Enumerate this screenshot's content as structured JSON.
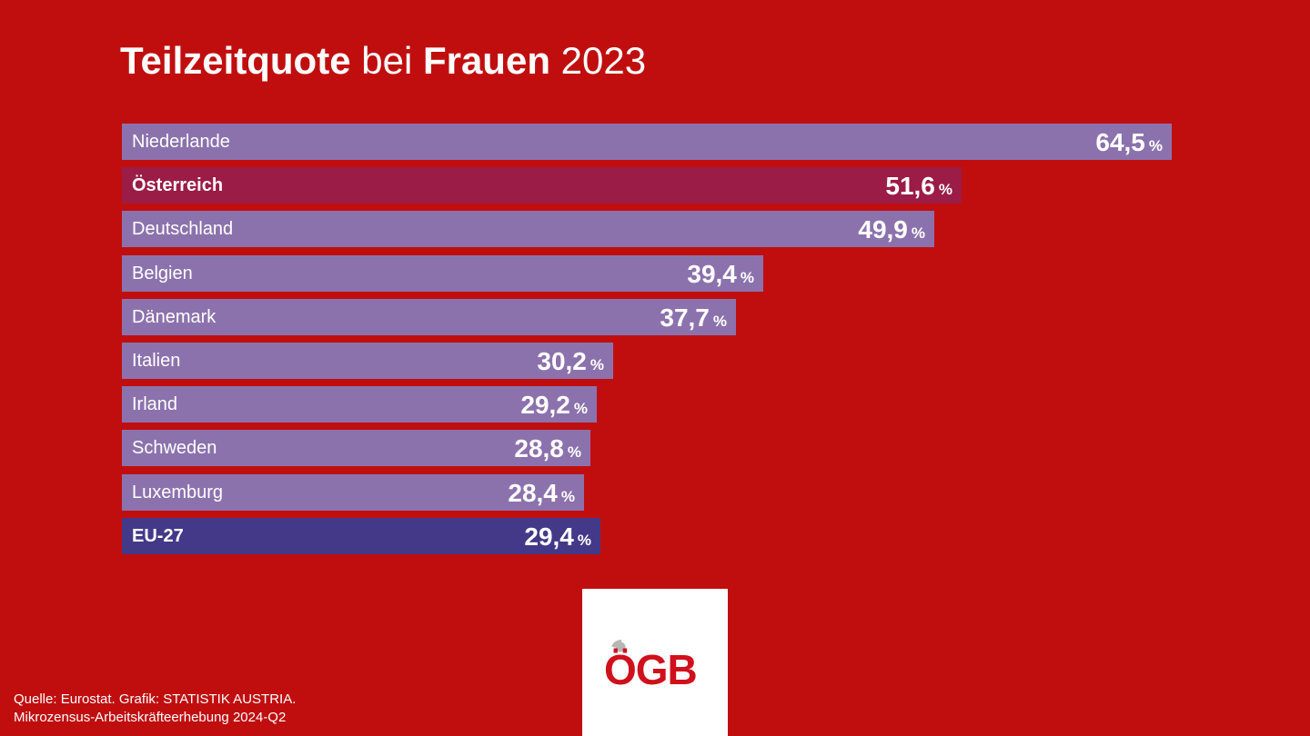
{
  "title": {
    "part1": "Teilzeitquote",
    "part2": " bei ",
    "part3": "Frauen",
    "part4": " 2023"
  },
  "chart_data": {
    "type": "bar",
    "orientation": "horizontal",
    "title": "Teilzeitquote bei Frauen 2023",
    "unit": "%",
    "categories": [
      "Niederlande",
      "Österreich",
      "Deutschland",
      "Belgien",
      "Dänemark",
      "Italien",
      "Irland",
      "Schweden",
      "Luxemburg",
      "EU-27"
    ],
    "values": [
      64.5,
      51.6,
      49.9,
      39.4,
      37.7,
      30.2,
      29.2,
      28.8,
      28.4,
      29.4
    ],
    "value_labels": [
      "64,5",
      "51,6",
      "49,9",
      "39,4",
      "37,7",
      "30,2",
      "29,2",
      "28,8",
      "28,4",
      "29,4"
    ],
    "highlight": {
      "Österreich": "#9b1c47",
      "EU-27": "#433988"
    },
    "default_color": "#8c72ad",
    "xlim": [
      0,
      64.5
    ]
  },
  "percent_sign": "%",
  "logo": {
    "text": "ÖGB",
    "color": "#d0101c"
  },
  "source": {
    "line1": "Quelle: Eurostat. Grafik: STATISTIK AUSTRIA.",
    "line2": "Mikrozensus-Arbeitskräfteerhebung 2024-Q2"
  },
  "colors": {
    "background": "#c00e0f",
    "text": "#ffffff"
  }
}
